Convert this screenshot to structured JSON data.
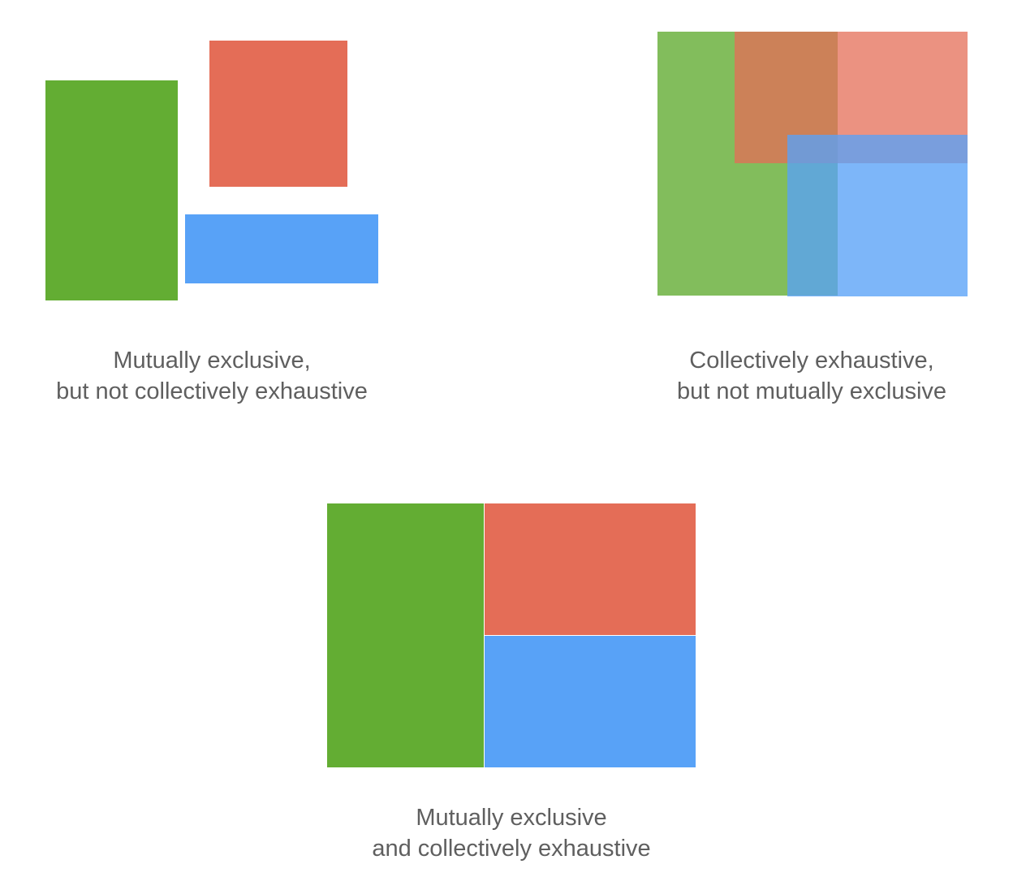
{
  "colors": {
    "green": "#63ad33",
    "red": "#e46d57",
    "blue": "#58a2f7",
    "caption_text": "#5f5f5f",
    "background": "#ffffff"
  },
  "panels": [
    {
      "caption_lines": [
        "Mutually exclusive,",
        "but not collectively exhaustive"
      ]
    },
    {
      "caption_lines": [
        "Collectively exhaustive,",
        "but not mutually exclusive"
      ]
    },
    {
      "caption_lines": [
        "Mutually exclusive",
        "and collectively exhaustive"
      ]
    }
  ]
}
